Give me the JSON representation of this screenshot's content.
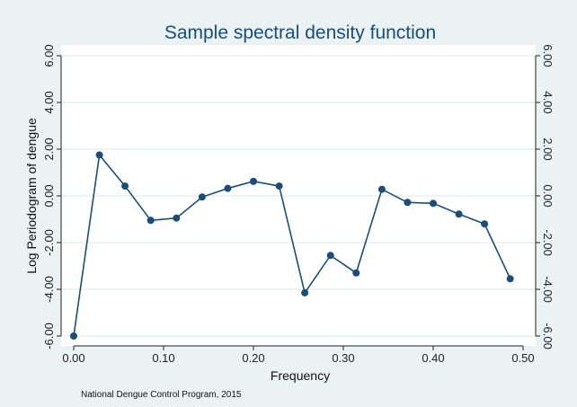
{
  "chart_data": {
    "type": "line",
    "title": "Sample spectral density function",
    "xlabel": "Frequency",
    "ylabel": "Log Periodogram of dengue",
    "note": "National Dengue Control Program, 2015",
    "xlim": [
      0.0,
      0.5
    ],
    "ylim": [
      -6.0,
      6.0
    ],
    "x_ticks": [
      "0.00",
      "0.10",
      "0.20",
      "0.30",
      "0.40",
      "0.50"
    ],
    "y_ticks": [
      "-6.00",
      "-4.00",
      "-2.00",
      "0.00",
      "2.00",
      "4.00",
      "6.00"
    ],
    "x_tick_values": [
      0.0,
      0.1,
      0.2,
      0.3,
      0.4,
      0.5
    ],
    "y_tick_values": [
      -6,
      -4,
      -2,
      0,
      2,
      4,
      6
    ],
    "grid": true,
    "right_axis_mirrored": true,
    "series": [
      {
        "x": [
          0.0,
          0.0286,
          0.0571,
          0.0857,
          0.1143,
          0.1429,
          0.1714,
          0.2,
          0.2286,
          0.2571,
          0.2857,
          0.3143,
          0.3429,
          0.3714,
          0.4,
          0.4286,
          0.4571,
          0.4857
        ],
        "y": [
          -6.0,
          1.75,
          0.42,
          -1.05,
          -0.95,
          -0.05,
          0.32,
          0.62,
          0.42,
          -4.15,
          -2.55,
          -3.3,
          0.28,
          -0.28,
          -0.32,
          -0.78,
          -1.2,
          -3.55
        ]
      }
    ],
    "colors": {
      "line": "#1a4d7a",
      "marker": "#1a4d7a",
      "grid": "#dde8ea",
      "plot_bg": "#ffffff",
      "outer_bg": "#eaf2f3"
    }
  }
}
